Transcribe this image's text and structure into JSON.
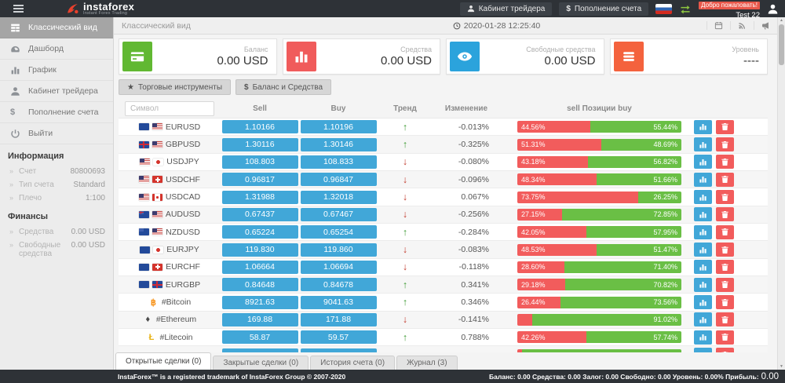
{
  "brand": {
    "logo_icon": "instaforex-logo",
    "name": "instaforex",
    "tagline": "Instant Forex Trading"
  },
  "header": {
    "cabinet_button": "Кабинет трейдера",
    "deposit_button": "Пополнение счета",
    "deposit_icon": "dollar-icon",
    "language_flag_icon": "ru-flag-icon",
    "swap_icon": "swap-arrows-icon",
    "welcome": "Добро пожаловать!",
    "username": "Test 22",
    "avatar_icon": "user-avatar-icon"
  },
  "sidebar": {
    "menu": [
      {
        "label": "Классический вид",
        "icon": "grid-icon",
        "active": true
      },
      {
        "label": "Дашборд",
        "icon": "gauge-icon",
        "active": false
      },
      {
        "label": "График",
        "icon": "bar-chart-icon",
        "active": false
      },
      {
        "label": "Кабинет трейдера",
        "icon": "person-icon",
        "active": false
      },
      {
        "label": "Пополнение счета",
        "icon": "dollar-icon",
        "active": false
      },
      {
        "label": "Выйти",
        "icon": "power-icon",
        "active": false
      }
    ],
    "sections": [
      {
        "title": "Информация",
        "rows": [
          {
            "label": "Счет",
            "value": "80800693"
          },
          {
            "label": "Тип счета",
            "value": "Standard"
          },
          {
            "label": "Плечо",
            "value": "1:100"
          }
        ]
      },
      {
        "title": "Финансы",
        "rows": [
          {
            "label": "Средства",
            "value": "0.00 USD"
          },
          {
            "label": "Свободные средства",
            "value": "0.00 USD"
          }
        ]
      }
    ]
  },
  "topbar": {
    "title": "Классический вид",
    "clock_icon": "clock-icon",
    "datetime": "2020-01-28 12:25:40",
    "icons": [
      "calendar-icon",
      "rss-icon",
      "megaphone-icon"
    ]
  },
  "cards": [
    {
      "label": "Баланс",
      "value": "0.00 USD",
      "icon": "credit-card-icon",
      "color": "#61b832"
    },
    {
      "label": "Средства",
      "value": "0.00 USD",
      "icon": "bar-chart-icon",
      "color": "#f05b5b"
    },
    {
      "label": "Свободные средства",
      "value": "0.00 USD",
      "icon": "eye-icon",
      "color": "#2ba3dc"
    },
    {
      "label": "Уровень",
      "value": "----",
      "icon": "menu-lines-icon",
      "color": "#f4623d"
    }
  ],
  "toolbar": [
    {
      "label": "Торговые инструменты",
      "icon": "star-icon"
    },
    {
      "label": "Баланс и Средства",
      "icon": "dollar-icon"
    }
  ],
  "table": {
    "filter_placeholder": "Символ",
    "headers": {
      "sell": "Sell",
      "buy": "Buy",
      "trend": "Тренд",
      "change": "Изменение",
      "positions": "sell Позиции buy"
    },
    "rows": [
      {
        "symbol": "EURUSD",
        "flags": [
          "eu",
          "us"
        ],
        "sell": "1.10166",
        "buy": "1.10196",
        "trend": "up",
        "change": "-0.013%",
        "sell_pct": 44.56,
        "buy_pct": 55.44,
        "sell_label": "44.56%",
        "buy_label": "55.44%"
      },
      {
        "symbol": "GBPUSD",
        "flags": [
          "gb",
          "us"
        ],
        "sell": "1.30116",
        "buy": "1.30146",
        "trend": "up",
        "change": "-0.325%",
        "sell_pct": 51.31,
        "buy_pct": 48.69,
        "sell_label": "51.31%",
        "buy_label": "48.69%"
      },
      {
        "symbol": "USDJPY",
        "flags": [
          "us",
          "jp"
        ],
        "sell": "108.803",
        "buy": "108.833",
        "trend": "down",
        "change": "-0.080%",
        "sell_pct": 43.18,
        "buy_pct": 56.82,
        "sell_label": "43.18%",
        "buy_label": "56.82%"
      },
      {
        "symbol": "USDCHF",
        "flags": [
          "us",
          "ch"
        ],
        "sell": "0.96817",
        "buy": "0.96847",
        "trend": "down",
        "change": "-0.096%",
        "sell_pct": 48.34,
        "buy_pct": 51.66,
        "sell_label": "48.34%",
        "buy_label": "51.66%"
      },
      {
        "symbol": "USDCAD",
        "flags": [
          "us",
          "ca"
        ],
        "sell": "1.31988",
        "buy": "1.32018",
        "trend": "down",
        "change": "0.067%",
        "sell_pct": 73.75,
        "buy_pct": 26.25,
        "sell_label": "73.75%",
        "buy_label": "26.25%"
      },
      {
        "symbol": "AUDUSD",
        "flags": [
          "au",
          "us"
        ],
        "sell": "0.67437",
        "buy": "0.67467",
        "trend": "down",
        "change": "-0.256%",
        "sell_pct": 27.15,
        "buy_pct": 72.85,
        "sell_label": "27.15%",
        "buy_label": "72.85%"
      },
      {
        "symbol": "NZDUSD",
        "flags": [
          "nz",
          "us"
        ],
        "sell": "0.65224",
        "buy": "0.65254",
        "trend": "up",
        "change": "-0.284%",
        "sell_pct": 42.05,
        "buy_pct": 57.95,
        "sell_label": "42.05%",
        "buy_label": "57.95%"
      },
      {
        "symbol": "EURJPY",
        "flags": [
          "eu",
          "jp"
        ],
        "sell": "119.830",
        "buy": "119.860",
        "trend": "down",
        "change": "-0.083%",
        "sell_pct": 48.53,
        "buy_pct": 51.47,
        "sell_label": "48.53%",
        "buy_label": "51.47%"
      },
      {
        "symbol": "EURCHF",
        "flags": [
          "eu",
          "ch"
        ],
        "sell": "1.06664",
        "buy": "1.06694",
        "trend": "down",
        "change": "-0.118%",
        "sell_pct": 28.6,
        "buy_pct": 71.4,
        "sell_label": "28.60%",
        "buy_label": "71.40%"
      },
      {
        "symbol": "EURGBP",
        "flags": [
          "eu",
          "gb"
        ],
        "sell": "0.84648",
        "buy": "0.84678",
        "trend": "up",
        "change": "0.341%",
        "sell_pct": 29.18,
        "buy_pct": 70.82,
        "sell_label": "29.18%",
        "buy_label": "70.82%"
      },
      {
        "symbol": "#Bitcoin",
        "crypto": "btc",
        "crypto_glyph": "฿",
        "sell": "8921.63",
        "buy": "9041.63",
        "trend": "up",
        "change": "0.346%",
        "sell_pct": 26.44,
        "buy_pct": 73.56,
        "sell_label": "26.44%",
        "buy_label": "73.56%"
      },
      {
        "symbol": "#Ethereum",
        "crypto": "eth",
        "crypto_glyph": "♦",
        "sell": "169.88",
        "buy": "171.88",
        "trend": "down",
        "change": "-0.141%",
        "sell_pct": 8.98,
        "buy_pct": 91.02,
        "sell_label": "",
        "buy_label": "91.02%"
      },
      {
        "symbol": "#Litecoin",
        "crypto": "ltc",
        "crypto_glyph": "Ł",
        "sell": "58.87",
        "buy": "59.57",
        "trend": "up",
        "change": "0.788%",
        "sell_pct": 42.26,
        "buy_pct": 57.74,
        "sell_label": "42.26%",
        "buy_label": "57.74%"
      },
      {
        "symbol": "",
        "sell": "",
        "buy": "",
        "trend": "",
        "change": "",
        "sell_pct": 3,
        "buy_pct": 97,
        "sell_label": "",
        "buy_label": ""
      }
    ]
  },
  "tabs": [
    {
      "label": "Открытые сделки (0)",
      "active": true
    },
    {
      "label": "Закрытые сделки (0)",
      "active": false
    },
    {
      "label": "История счета (0)",
      "active": false
    },
    {
      "label": "Журнал (3)",
      "active": false
    }
  ],
  "footer": {
    "left": "InstaForex™ is a registered trademark of InstaForex Group © 2007-2020",
    "summary": "Баланс: 0.00 Средства: 0.00 Залог: 0.00 Свободно: 0.00 Уровень: 0.00% Прибыль:",
    "profit": "0.00"
  },
  "colors": {
    "header_bg": "#2e3237",
    "accent_blue": "#41a7d8",
    "bar_red": "#f25c5c",
    "bar_green": "#6abf45",
    "trend_up": "#3f9c35",
    "trend_down": "#c0392b",
    "welcome_badge": "#e8574a"
  }
}
